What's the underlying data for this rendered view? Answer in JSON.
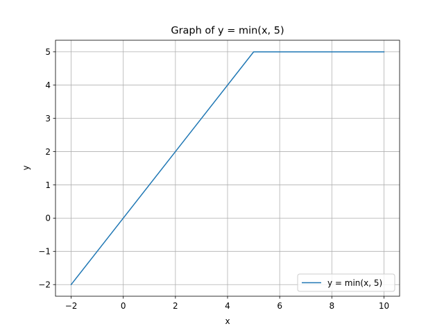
{
  "chart_data": {
    "type": "line",
    "title": "Graph of y = min(x, 5)",
    "xlabel": "x",
    "ylabel": "y",
    "xlim": [
      -2.6,
      10.6
    ],
    "ylim": [
      -2.35,
      5.35
    ],
    "x_ticks": [
      -2,
      0,
      2,
      4,
      6,
      8,
      10
    ],
    "y_ticks": [
      -2,
      -1,
      0,
      1,
      2,
      3,
      4,
      5
    ],
    "x_tick_labels": [
      "−2",
      "0",
      "2",
      "4",
      "6",
      "8",
      "10"
    ],
    "y_tick_labels": [
      "−2",
      "−1",
      "0",
      "1",
      "2",
      "3",
      "4",
      "5"
    ],
    "grid": true,
    "legend_position": "lower-right",
    "series": [
      {
        "name": "y = min(x, 5)",
        "color": "#1f77b4",
        "x": [
          -2,
          5,
          10
        ],
        "y": [
          -2,
          5,
          5
        ]
      }
    ]
  }
}
